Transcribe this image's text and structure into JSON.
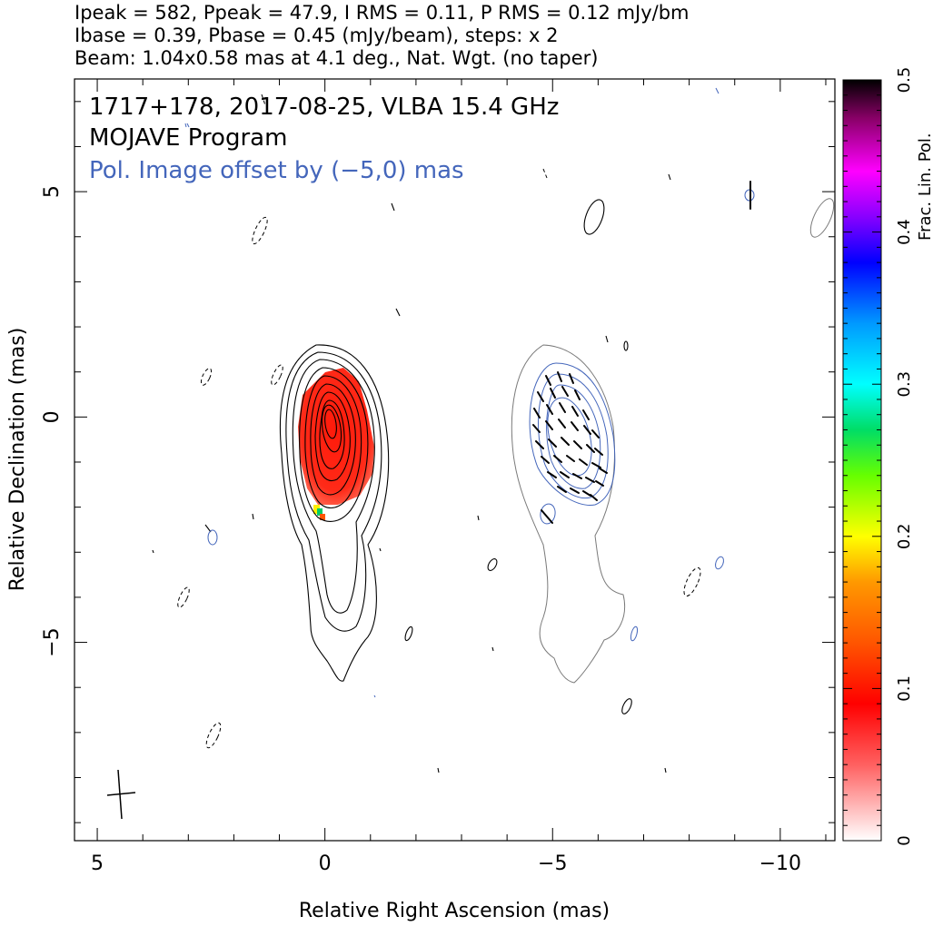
{
  "header": {
    "line1": "Ipeak = 582, Ppeak = 47.9, I RMS = 0.11, P RMS = 0.12 mJy/bm",
    "line2": "Ibase = 0.39, Pbase = 0.45 (mJy/beam), steps: x 2",
    "line3": "Beam: 1.04x0.58 mas at 4.1 deg., Nat. Wgt. (no taper)"
  },
  "plot": {
    "title_source": "1717+178, 2017-08-25, VLBA 15.4 GHz",
    "title_program": "MOJAVE Program",
    "pol_note": "Pol. Image offset by (−5,0) mas"
  },
  "chart_data": {
    "type": "contour",
    "xlabel": "Relative Right Ascension (mas)",
    "ylabel": "Relative Declination (mas)",
    "xlim": [
      5.5,
      -11.2
    ],
    "ylim": [
      -9.4,
      7.5
    ],
    "x_ticks": [
      5,
      0,
      -5,
      -10
    ],
    "x_tick_labels": [
      "5",
      "0",
      "−5",
      "−10"
    ],
    "y_ticks": [
      5,
      0,
      -5
    ],
    "y_tick_labels": [
      "5",
      "0",
      "−5"
    ],
    "colorbar": {
      "label": "Frac. Lin. Pol.",
      "range": [
        0,
        0.5
      ],
      "ticks": [
        0,
        0.1,
        0.2,
        0.3,
        0.4,
        0.5
      ],
      "tick_labels": [
        "0",
        "0.1",
        "0.2",
        "0.3",
        "0.4",
        "0.5"
      ]
    },
    "beam": {
      "major_mas": 1.04,
      "minor_mas": 0.58,
      "pa_deg": 4.1,
      "center": [
        4.4,
        -8.3
      ]
    },
    "total_intensity": {
      "peak_mjy_per_beam": 582,
      "base_mjy_per_beam": 0.39,
      "step_factor": 2,
      "core_center": [
        -0.3,
        -0.5
      ],
      "jet_extent_dec": [
        -5.8,
        1.5
      ]
    },
    "polarization": {
      "peak_mjy_per_beam": 47.9,
      "base_mjy_per_beam": 0.45,
      "offset_mas": [
        -5,
        0
      ],
      "frac_pol_core": 0.06,
      "frac_pol_jet_spot": 0.2
    },
    "colors": {
      "stokes_i_contours": "#000000",
      "pol_contours": "#4466bb",
      "pol_outer_contour": "#7a7a7a",
      "frac_pol_core": "#ff2a1a"
    }
  }
}
